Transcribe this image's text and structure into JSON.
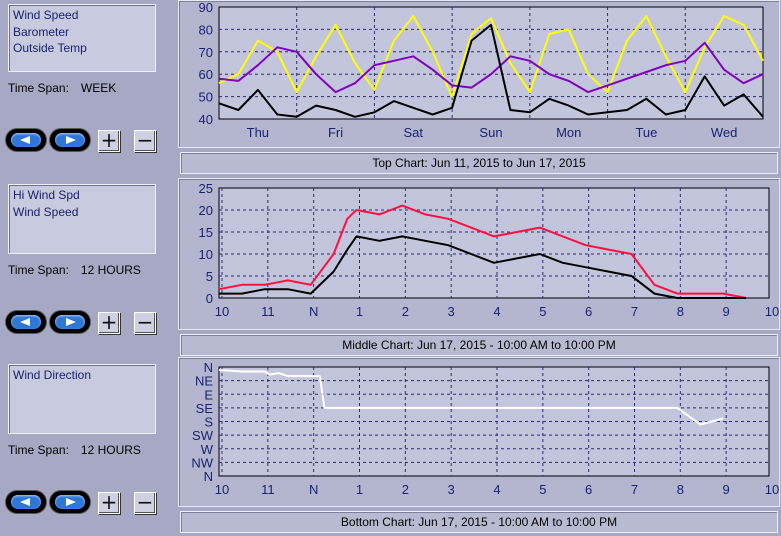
{
  "panels": [
    {
      "series_list": [
        "Wind Speed",
        "Barometer",
        "Outside Temp"
      ],
      "time_span_label": "Time Span:",
      "time_span_value": "WEEK",
      "caption": "Top Chart:  Jun 11, 2015  to  Jun 17, 2015"
    },
    {
      "series_list": [
        "Hi Wind Spd",
        "Wind Speed"
      ],
      "time_span_label": "Time Span:",
      "time_span_value": "12 HOURS",
      "caption": "Middle Chart:  Jun 17, 2015 - 10:00 AM  to  10:00 PM"
    },
    {
      "series_list": [
        "Wind Direction"
      ],
      "time_span_label": "Time Span:",
      "time_span_value": "12 HOURS",
      "caption": "Bottom Chart:  Jun 17, 2015 - 10:00 AM  to  10:00 PM"
    }
  ],
  "controls": {
    "plus": "+",
    "minus": "−",
    "prev_icon": "arrow-left-icon",
    "next_icon": "arrow-right-icon"
  },
  "chart_data": [
    {
      "type": "line",
      "x_tick_labels": [
        "Thu",
        "Fri",
        "Sat",
        "Sun",
        "Mon",
        "Tue",
        "Wed"
      ],
      "y_tick_labels": [
        "40",
        "50",
        "60",
        "70",
        "80",
        "90"
      ],
      "ylim": [
        40,
        90
      ],
      "xlim": [
        0,
        7
      ],
      "grid": true,
      "series": [
        {
          "color": "#ffff00",
          "x": [
            0,
            0.25,
            0.5,
            0.75,
            1,
            1.25,
            1.5,
            1.75,
            2,
            2.25,
            2.5,
            2.75,
            3,
            3.25,
            3.5,
            3.75,
            4,
            4.25,
            4.5,
            4.75,
            5,
            5.25,
            5.5,
            5.75,
            6,
            6.25,
            6.5,
            6.75,
            7
          ],
          "values": [
            56,
            60,
            75,
            70,
            52,
            68,
            82,
            65,
            53,
            75,
            86,
            70,
            50,
            78,
            85,
            65,
            52,
            78,
            80,
            60,
            52,
            75,
            86,
            68,
            52,
            72,
            86,
            82,
            66
          ]
        },
        {
          "color": "#8000c0",
          "x": [
            0,
            0.25,
            0.5,
            0.75,
            1,
            1.25,
            1.5,
            1.75,
            2,
            2.25,
            2.5,
            2.75,
            3,
            3.25,
            3.5,
            3.75,
            4,
            4.25,
            4.5,
            4.75,
            5,
            5.25,
            5.5,
            5.75,
            6,
            6.25,
            6.5,
            6.75,
            7
          ],
          "values": [
            58,
            57,
            64,
            72,
            70,
            60,
            52,
            56,
            64,
            66,
            68,
            62,
            55,
            54,
            60,
            68,
            66,
            60,
            57,
            52,
            55,
            58,
            61,
            64,
            66,
            74,
            62,
            56,
            60
          ]
        },
        {
          "color": "#000000",
          "x": [
            0,
            0.25,
            0.5,
            0.75,
            1,
            1.25,
            1.5,
            1.75,
            2,
            2.25,
            2.5,
            2.75,
            3,
            3.25,
            3.5,
            3.75,
            4,
            4.25,
            4.5,
            4.75,
            5,
            5.25,
            5.5,
            5.75,
            6,
            6.25,
            6.5,
            6.75,
            7
          ],
          "values": [
            47,
            44,
            53,
            42,
            41,
            46,
            44,
            41,
            43,
            48,
            45,
            42,
            45,
            75,
            82,
            44,
            43,
            49,
            46,
            42,
            43,
            44,
            49,
            42,
            44,
            59,
            46,
            51,
            41
          ]
        }
      ]
    },
    {
      "type": "line",
      "x_tick_labels": [
        "10",
        "11",
        "N",
        "1",
        "2",
        "3",
        "4",
        "5",
        "6",
        "7",
        "8",
        "9",
        "10"
      ],
      "y_tick_labels": [
        "0",
        "5",
        "10",
        "15",
        "20",
        "25"
      ],
      "ylim": [
        0,
        25
      ],
      "xlim": [
        0,
        12
      ],
      "grid": true,
      "series": [
        {
          "color": "#ff1040",
          "x": [
            0,
            0.5,
            1,
            1.5,
            2,
            2.5,
            2.8,
            3,
            3.5,
            4,
            4.5,
            5,
            5.5,
            6,
            6.5,
            7,
            7.5,
            8,
            8.5,
            9,
            9.5,
            10,
            10.5,
            11,
            11.5
          ],
          "values": [
            2,
            3,
            3,
            4,
            3,
            10,
            18,
            20,
            19,
            21,
            19,
            18,
            16,
            14,
            15,
            16,
            14,
            12,
            11,
            10,
            3,
            1,
            1,
            1,
            0
          ]
        },
        {
          "color": "#000000",
          "x": [
            0,
            0.5,
            1,
            1.5,
            2,
            2.5,
            2.8,
            3,
            3.5,
            4,
            4.5,
            5,
            5.5,
            6,
            6.5,
            7,
            7.5,
            8,
            8.5,
            9,
            9.5,
            10,
            10.5,
            11,
            11.5
          ],
          "values": [
            1,
            1,
            2,
            2,
            1,
            6,
            11,
            14,
            13,
            14,
            13,
            12,
            10,
            8,
            9,
            10,
            8,
            7,
            6,
            5,
            1,
            0,
            0,
            0,
            0
          ]
        }
      ]
    },
    {
      "type": "line",
      "x_tick_labels": [
        "10",
        "11",
        "N",
        "1",
        "2",
        "3",
        "4",
        "5",
        "6",
        "7",
        "8",
        "9",
        "10"
      ],
      "y_tick_labels": [
        "N",
        "NW",
        "W",
        "SW",
        "S",
        "SE",
        "E",
        "NE",
        "N"
      ],
      "ylim": [
        0,
        360
      ],
      "xlim": [
        0,
        12
      ],
      "grid": true,
      "series": [
        {
          "color": "#ffffff",
          "x": [
            0,
            0.5,
            1,
            1.1,
            1.3,
            1.5,
            1.8,
            2.2,
            2.3,
            3,
            4,
            5,
            6,
            7,
            8,
            9,
            9.5,
            10,
            10.5,
            11
          ],
          "values": [
            350,
            345,
            345,
            335,
            340,
            330,
            330,
            330,
            225,
            225,
            225,
            225,
            225,
            225,
            225,
            225,
            225,
            225,
            170,
            190
          ]
        }
      ]
    }
  ]
}
